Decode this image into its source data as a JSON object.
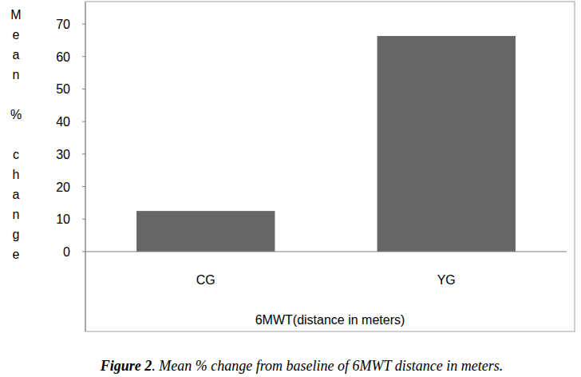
{
  "chart_data": {
    "type": "bar",
    "title": "Figure 2. Mean % change from baseline of 6MWT distance in meters.",
    "y_label": "Mean % change",
    "x_label": "6MWT(distance in meters)",
    "categories": [
      "CG",
      "YG"
    ],
    "values": [
      12.5,
      66.3
    ],
    "color": "#666666",
    "ylim": [
      0,
      70
    ],
    "yticks": [
      0,
      10,
      20,
      30,
      40,
      50,
      60,
      70
    ],
    "grid": false
  }
}
